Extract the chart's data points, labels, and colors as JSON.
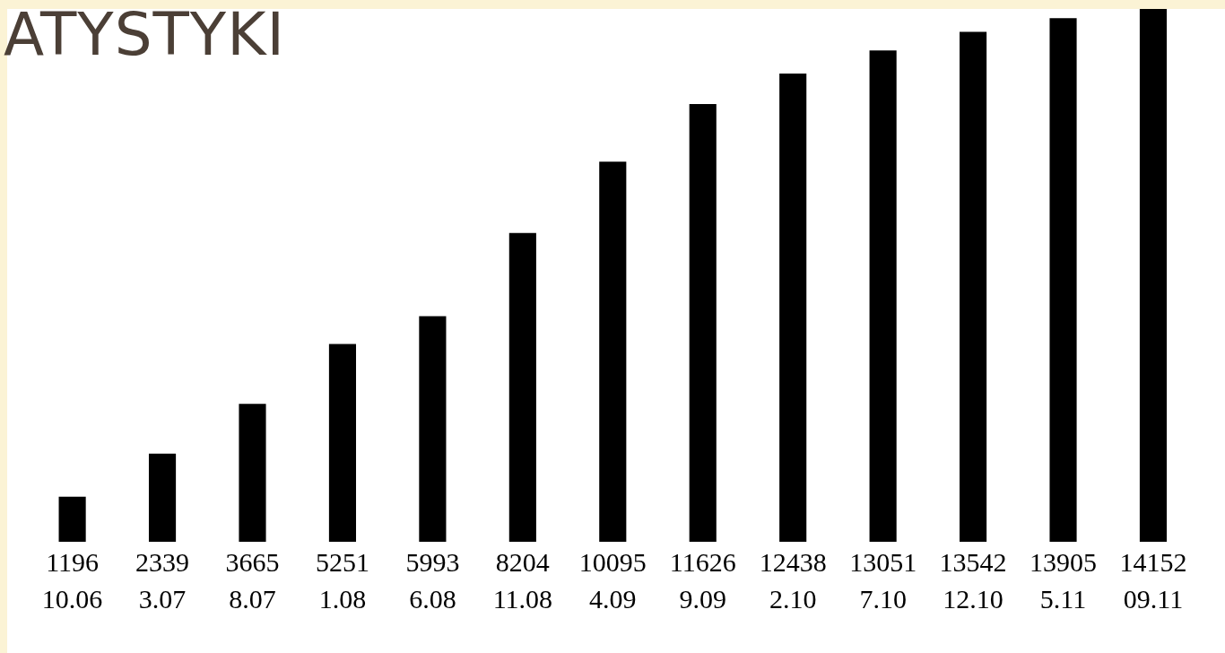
{
  "chart_data": {
    "type": "bar",
    "title": "ATYSTYKI",
    "categories": [
      "10.06",
      "3.07",
      "8.07",
      "1.08",
      "6.08",
      "11.08",
      "4.09",
      "9.09",
      "2.10",
      "7.10",
      "12.10",
      "5.11",
      "09.11"
    ],
    "values": [
      1196,
      2339,
      3665,
      5251,
      5993,
      8204,
      10095,
      11626,
      12438,
      13051,
      13542,
      13905,
      14152
    ],
    "color": "#000000",
    "data_labels": true,
    "grid": false,
    "legend": false
  }
}
